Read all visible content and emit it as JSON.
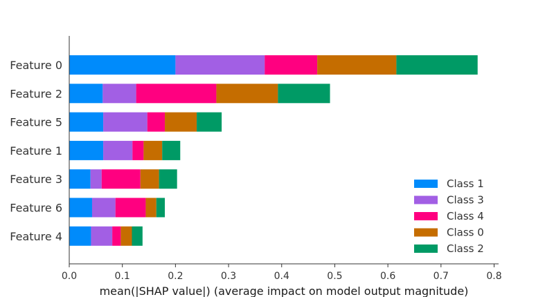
{
  "chart_data": {
    "type": "bar",
    "orientation": "horizontal",
    "stacked": true,
    "categories": [
      "Feature 0",
      "Feature 2",
      "Feature 5",
      "Feature 1",
      "Feature 3",
      "Feature 6",
      "Feature 4"
    ],
    "series": [
      {
        "name": "Class 1",
        "color": "#008bfb",
        "values": [
          0.2,
          0.063,
          0.064,
          0.064,
          0.04,
          0.043,
          0.041
        ]
      },
      {
        "name": "Class 3",
        "color": "#a25fe4",
        "values": [
          0.168,
          0.063,
          0.083,
          0.055,
          0.021,
          0.044,
          0.04
        ]
      },
      {
        "name": "Class 4",
        "color": "#ff0080",
        "values": [
          0.099,
          0.151,
          0.033,
          0.021,
          0.073,
          0.057,
          0.016
        ]
      },
      {
        "name": "Class 0",
        "color": "#c56d00",
        "values": [
          0.149,
          0.116,
          0.06,
          0.035,
          0.035,
          0.02,
          0.021
        ]
      },
      {
        "name": "Class 2",
        "color": "#009a65",
        "values": [
          0.153,
          0.098,
          0.047,
          0.034,
          0.034,
          0.016,
          0.02
        ]
      }
    ],
    "xlabel": "mean(|SHAP value|) (average impact on model output magnitude)",
    "ylabel": "",
    "xlim": [
      0.0,
      0.8
    ],
    "xticks": [
      "0.0",
      "0.1",
      "0.2",
      "0.3",
      "0.4",
      "0.5",
      "0.6",
      "0.7",
      "0.8"
    ],
    "grid": false,
    "legend_position": "lower-right",
    "legend_order": [
      "Class 1",
      "Class 3",
      "Class 4",
      "Class 0",
      "Class 2"
    ]
  }
}
